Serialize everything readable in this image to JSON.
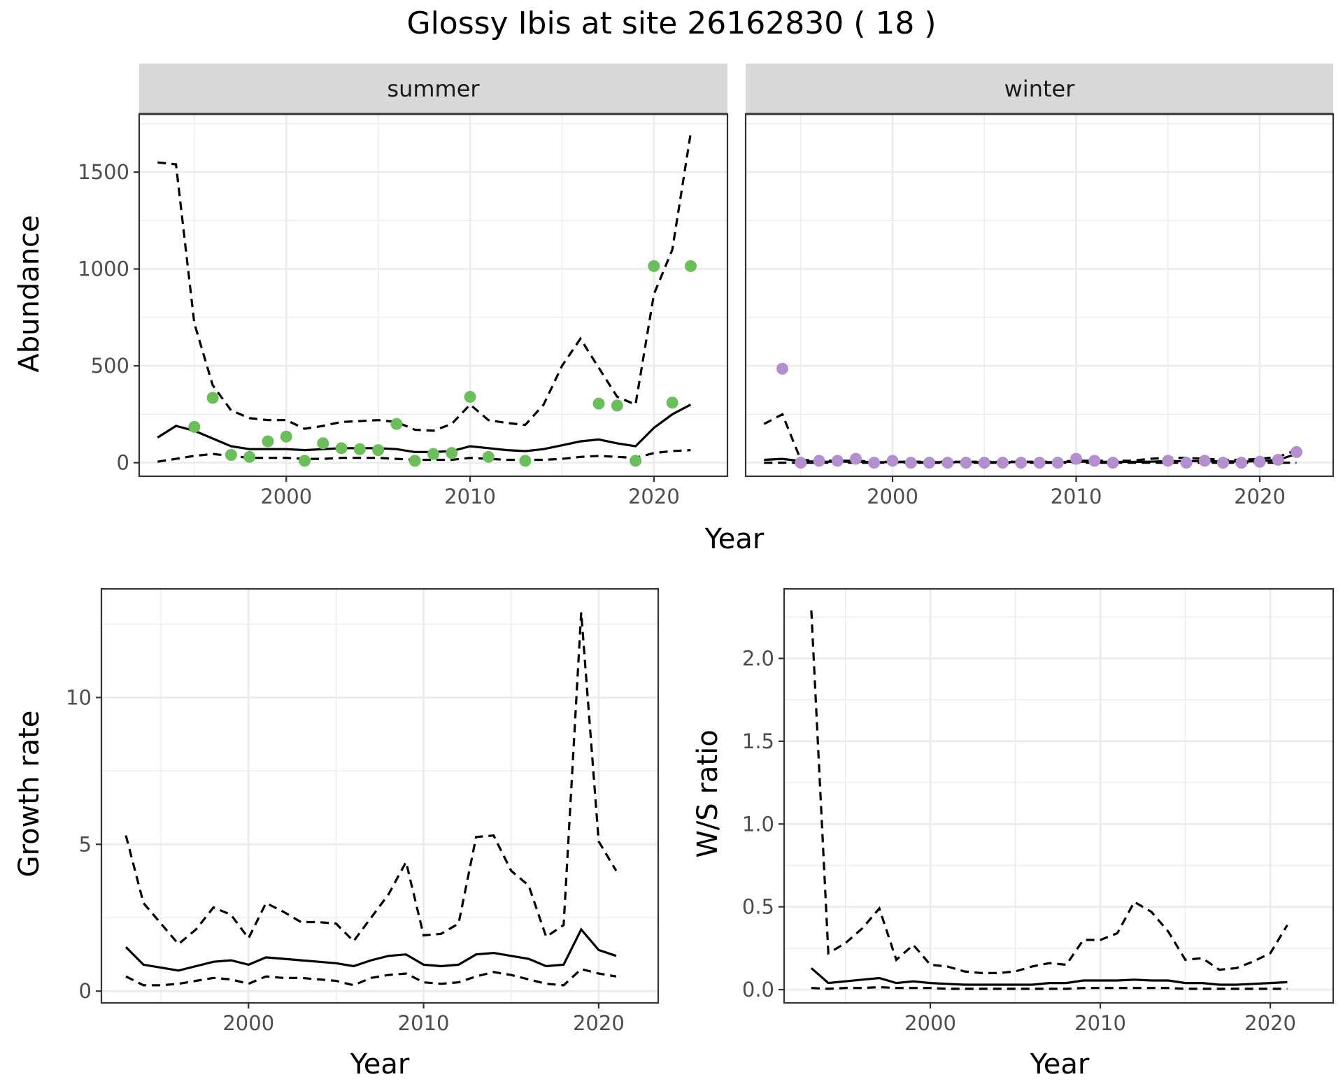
{
  "title": "Glossy Ibis at site 26162830 ( 18 )",
  "colors": {
    "summer_points": "#6abf5a",
    "winter_points": "#b48fcf",
    "strip_fill": "#d9d9d9"
  },
  "chart_data": [
    {
      "id": "abundance",
      "type": "line",
      "facets": [
        "summer",
        "winter"
      ],
      "xlabel": "Year",
      "ylabel": "Abundance",
      "xlim": [
        1992,
        2024
      ],
      "ylim": [
        -70,
        1800
      ],
      "x_ticks": [
        2000,
        2010,
        2020
      ],
      "y_ticks": [
        0,
        500,
        1000,
        1500
      ],
      "grid": true,
      "panels": [
        {
          "facet": "summer",
          "fit": {
            "x": [
              1993,
              1994,
              1995,
              1996,
              1997,
              1998,
              1999,
              2000,
              2001,
              2002,
              2003,
              2004,
              2005,
              2006,
              2007,
              2008,
              2009,
              2010,
              2011,
              2012,
              2013,
              2014,
              2015,
              2016,
              2017,
              2018,
              2019,
              2020,
              2021,
              2022
            ],
            "mean": [
              130,
              190,
              165,
              125,
              85,
              70,
              70,
              70,
              65,
              70,
              75,
              75,
              75,
              70,
              55,
              55,
              60,
              85,
              75,
              65,
              60,
              70,
              90,
              110,
              120,
              100,
              85,
              180,
              250,
              300
            ],
            "lower": [
              5,
              20,
              35,
              45,
              35,
              25,
              25,
              25,
              20,
              20,
              25,
              25,
              25,
              20,
              15,
              15,
              15,
              25,
              20,
              15,
              15,
              15,
              20,
              30,
              35,
              30,
              25,
              50,
              60,
              65
            ],
            "upper": [
              1550,
              1540,
              720,
              400,
              270,
              230,
              220,
              220,
              175,
              190,
              210,
              215,
              220,
              210,
              170,
              165,
              200,
              300,
              220,
              205,
              195,
              300,
              500,
              640,
              490,
              340,
              300,
              870,
              1100,
              1700
            ]
          },
          "observed": {
            "x": [
              1995,
              1996,
              1997,
              1998,
              1999,
              2000,
              2001,
              2002,
              2003,
              2004,
              2005,
              2006,
              2007,
              2008,
              2009,
              2010,
              2011,
              2013,
              2017,
              2018,
              2019,
              2020,
              2021,
              2022
            ],
            "y": [
              185,
              335,
              40,
              30,
              110,
              135,
              10,
              100,
              75,
              70,
              65,
              200,
              10,
              45,
              50,
              340,
              30,
              10,
              305,
              295,
              10,
              1015,
              310,
              1015
            ]
          }
        },
        {
          "facet": "winter",
          "fit": {
            "x": [
              1993,
              1994,
              1995,
              1996,
              1997,
              1998,
              1999,
              2000,
              2001,
              2002,
              2003,
              2004,
              2005,
              2006,
              2007,
              2008,
              2009,
              2010,
              2011,
              2012,
              2013,
              2014,
              2015,
              2016,
              2017,
              2018,
              2019,
              2020,
              2021,
              2022
            ],
            "mean": [
              15,
              20,
              8,
              5,
              5,
              5,
              3,
              3,
              3,
              3,
              3,
              3,
              3,
              3,
              3,
              3,
              3,
              5,
              5,
              4,
              4,
              5,
              8,
              8,
              8,
              6,
              6,
              8,
              15,
              45
            ],
            "lower": [
              0,
              0,
              0,
              0,
              0,
              0,
              0,
              0,
              0,
              0,
              0,
              0,
              0,
              0,
              0,
              0,
              0,
              0,
              0,
              0,
              0,
              0,
              0,
              0,
              0,
              0,
              0,
              0,
              0,
              0
            ],
            "upper": [
              200,
              250,
              15,
              10,
              10,
              10,
              5,
              5,
              5,
              5,
              5,
              5,
              5,
              5,
              5,
              5,
              5,
              10,
              10,
              10,
              10,
              20,
              25,
              25,
              20,
              15,
              15,
              20,
              30,
              65
            ]
          },
          "observed": {
            "x": [
              1994,
              1995,
              1996,
              1997,
              1998,
              1999,
              2000,
              2001,
              2002,
              2003,
              2004,
              2005,
              2006,
              2007,
              2008,
              2009,
              2010,
              2011,
              2012,
              2015,
              2016,
              2017,
              2018,
              2019,
              2020,
              2021,
              2022
            ],
            "y": [
              485,
              0,
              10,
              10,
              20,
              0,
              10,
              0,
              0,
              0,
              0,
              0,
              0,
              0,
              0,
              0,
              20,
              10,
              0,
              10,
              0,
              10,
              0,
              0,
              5,
              15,
              55
            ]
          }
        }
      ]
    },
    {
      "id": "growth-rate",
      "type": "line",
      "xlabel": "Year",
      "ylabel": "Growth rate",
      "xlim": [
        1991.6,
        2023.4
      ],
      "ylim": [
        -0.4,
        13.7
      ],
      "x_ticks": [
        2000,
        2010,
        2020
      ],
      "y_ticks": [
        0,
        5,
        10
      ],
      "grid": true,
      "fit": {
        "x": [
          1993,
          1994,
          1995,
          1996,
          1997,
          1998,
          1999,
          2000,
          2001,
          2002,
          2003,
          2004,
          2005,
          2006,
          2007,
          2008,
          2009,
          2010,
          2011,
          2012,
          2013,
          2014,
          2015,
          2016,
          2017,
          2018,
          2019,
          2020,
          2021
        ],
        "mean": [
          1.5,
          0.9,
          0.8,
          0.7,
          0.85,
          1.0,
          1.05,
          0.9,
          1.15,
          1.1,
          1.05,
          1.0,
          0.95,
          0.85,
          1.05,
          1.2,
          1.25,
          0.9,
          0.85,
          0.9,
          1.25,
          1.3,
          1.2,
          1.1,
          0.85,
          0.9,
          2.1,
          1.4,
          1.2
        ],
        "lower": [
          0.5,
          0.2,
          0.2,
          0.25,
          0.35,
          0.45,
          0.4,
          0.25,
          0.5,
          0.45,
          0.45,
          0.4,
          0.35,
          0.2,
          0.45,
          0.55,
          0.6,
          0.3,
          0.25,
          0.3,
          0.5,
          0.65,
          0.55,
          0.4,
          0.25,
          0.2,
          0.75,
          0.6,
          0.5
        ],
        "upper": [
          5.3,
          3.0,
          2.3,
          1.6,
          2.1,
          2.85,
          2.6,
          1.8,
          3.0,
          2.7,
          2.35,
          2.35,
          2.3,
          1.7,
          2.5,
          3.3,
          4.4,
          1.9,
          1.95,
          2.3,
          5.25,
          5.3,
          4.1,
          3.6,
          1.85,
          2.25,
          12.9,
          5.1,
          4.1
        ]
      }
    },
    {
      "id": "ws-ratio",
      "type": "line",
      "xlabel": "Year",
      "ylabel": "W/S ratio",
      "xlim": [
        1991.4,
        2023.7
      ],
      "ylim": [
        -0.08,
        2.42
      ],
      "x_ticks": [
        2000,
        2010,
        2020
      ],
      "y_ticks": [
        0.0,
        0.5,
        1.0,
        1.5,
        2.0
      ],
      "y_tick_labels": [
        "0.0",
        "0.5",
        "1.0",
        "1.5",
        "2.0"
      ],
      "grid": true,
      "fit": {
        "x": [
          1993,
          1994,
          1995,
          1996,
          1997,
          1998,
          1999,
          2000,
          2001,
          2002,
          2003,
          2004,
          2005,
          2006,
          2007,
          2008,
          2009,
          2010,
          2011,
          2012,
          2013,
          2014,
          2015,
          2016,
          2017,
          2018,
          2019,
          2020,
          2021
        ],
        "mean": [
          0.13,
          0.04,
          0.05,
          0.06,
          0.07,
          0.04,
          0.05,
          0.04,
          0.035,
          0.03,
          0.03,
          0.03,
          0.03,
          0.03,
          0.04,
          0.04,
          0.055,
          0.055,
          0.055,
          0.06,
          0.055,
          0.055,
          0.04,
          0.04,
          0.03,
          0.03,
          0.035,
          0.04,
          0.045
        ],
        "lower": [
          0.01,
          0.005,
          0.01,
          0.01,
          0.015,
          0.01,
          0.01,
          0.01,
          0.005,
          0.005,
          0.005,
          0.005,
          0.005,
          0.005,
          0.005,
          0.005,
          0.01,
          0.01,
          0.01,
          0.01,
          0.01,
          0.01,
          0.005,
          0.005,
          0.005,
          0.005,
          0.005,
          0.005,
          0.005
        ],
        "upper": [
          2.29,
          0.22,
          0.28,
          0.37,
          0.49,
          0.18,
          0.27,
          0.15,
          0.14,
          0.11,
          0.1,
          0.1,
          0.11,
          0.14,
          0.16,
          0.15,
          0.3,
          0.3,
          0.34,
          0.53,
          0.47,
          0.35,
          0.18,
          0.19,
          0.12,
          0.13,
          0.17,
          0.22,
          0.39
        ]
      }
    }
  ]
}
